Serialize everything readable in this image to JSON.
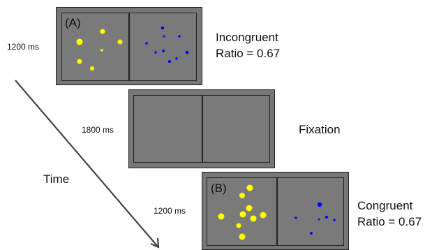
{
  "screens": [
    {
      "panel_tag": "(A)",
      "duration": "1200 ms",
      "condition": "Incongruent",
      "ratio": "Ratio = 0.67",
      "left_color": "#ffff00",
      "right_color": "#0000ff"
    },
    {
      "panel_tag": "",
      "duration": "1800 ms",
      "condition": "Fixation",
      "ratio": ""
    },
    {
      "panel_tag": "(B)",
      "duration": "1200 ms",
      "condition": "Congruent",
      "ratio": "Ratio = 0.67",
      "left_color": "#ffff00",
      "right_color": "#0000ff"
    }
  ],
  "time_label": "Time",
  "colors": {
    "screen_bg": "#777777",
    "border": "#222222",
    "dot_yellow": "#ffff00",
    "dot_blue": "#0000ff"
  }
}
